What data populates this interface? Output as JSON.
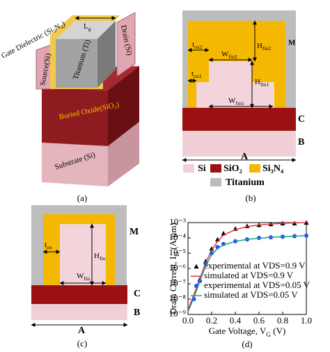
{
  "panel_a": {
    "caption": "(a)",
    "labels": [
      "Gate Dielectric (Si₃N₄)",
      {
        "text": "L",
        "sub": "g"
      },
      "Titanium (Ti)",
      "Drain (Si)",
      "Source(Si)",
      "Buried Oxide(SiO₂)",
      "Substrate (Si)"
    ]
  },
  "panel_b": {
    "caption": "(b)",
    "labels": {
      "tox2": {
        "text": "t",
        "sub": "ox2"
      },
      "wfin2": {
        "text": "W",
        "sub": "fin2"
      },
      "hfin2": {
        "text": "H",
        "sub": "fin2"
      },
      "m": "M",
      "tox1": {
        "text": "t",
        "sub": "ox1"
      },
      "hfin1": {
        "text": "H",
        "sub": "fin1"
      },
      "wfin1": {
        "text": "W",
        "sub": "fin1"
      },
      "c": "C",
      "b": "B",
      "a": "A"
    },
    "legend": [
      "Si",
      "SiO₂",
      "Si₃N₄",
      "Titanium"
    ]
  },
  "panel_c": {
    "caption": "(c)",
    "labels": {
      "tox": {
        "text": "t",
        "sub": "ox"
      },
      "hfin": {
        "text": "H",
        "sub": "fin"
      },
      "wfin": {
        "text": "W",
        "sub": "fin"
      },
      "m": "M",
      "c": "C",
      "b": "B",
      "a": "A"
    }
  },
  "chart_data": {
    "type": "line",
    "caption": "(d)",
    "x_label": {
      "text": "Gate Voltage, V",
      "sub": "G",
      "tail": " (V)"
    },
    "y_label": {
      "text": "Drain Current, I",
      "sub": "D",
      "tail": " (A/μm)"
    },
    "log_y": true,
    "grid": false,
    "xlim": [
      0,
      1
    ],
    "xticks": [
      {
        "value": 0,
        "label": "0.0"
      },
      {
        "value": 0.2,
        "label": "0.2"
      },
      {
        "value": 0.4,
        "label": "0.4"
      },
      {
        "value": 0.6,
        "label": "0.6"
      },
      {
        "value": 0.8,
        "label": "0.8"
      },
      {
        "value": 1,
        "label": "1.0"
      }
    ],
    "ylim": [
      1e-09,
      0.001
    ],
    "yticks": [
      {
        "value": 1e-09,
        "label": "10⁻⁹"
      },
      {
        "value": 1e-08,
        "label": "10⁻⁸"
      },
      {
        "value": 1e-07,
        "label": "10⁻⁷"
      },
      {
        "value": 1e-06,
        "label": "10⁻⁶"
      },
      {
        "value": 1e-05,
        "label": "10⁻⁵"
      },
      {
        "value": 0.0001,
        "label": "10⁻⁴"
      },
      {
        "value": 0.001,
        "label": "10⁻³"
      }
    ],
    "series": [
      {
        "name": "experimental at VDS=0.9 V",
        "color": "#000000",
        "style": "markers",
        "marker": "triangle",
        "x": [
          0.1,
          0.15,
          0.2,
          0.25,
          0.3,
          0.4,
          0.5,
          0.6,
          0.7,
          0.8,
          0.9,
          1.0
        ],
        "values": [
          2e-07,
          3e-06,
          2e-05,
          8e-05,
          0.0002,
          0.0004,
          0.0006,
          0.0007,
          0.0008,
          0.0009,
          0.0009,
          0.001
        ]
      },
      {
        "name": "simulated at VDS=0.9 V",
        "color": "#e8322b",
        "style": "line",
        "x": [
          0,
          0.05,
          0.1,
          0.15,
          0.2,
          0.25,
          0.3,
          0.4,
          0.5,
          0.6,
          0.7,
          0.8,
          0.9,
          1.0
        ],
        "values": [
          2e-09,
          2e-08,
          2e-07,
          2.5e-06,
          1.5e-05,
          6e-05,
          0.00015,
          0.00035,
          0.00055,
          0.0007,
          0.0008,
          0.0009,
          0.00095,
          0.001
        ]
      },
      {
        "name": "experimental at VDS=0.05 V",
        "color": "#1f4fe0",
        "style": "markers",
        "marker": "circle",
        "x": [
          0.05,
          0.1,
          0.15,
          0.2,
          0.25,
          0.3,
          0.4,
          0.5,
          0.6,
          0.7,
          0.8,
          0.9,
          1.0
        ],
        "values": [
          1e-08,
          1.5e-07,
          2e-06,
          1e-05,
          2.5e-05,
          4e-05,
          6e-05,
          8e-05,
          0.0001,
          0.00011,
          0.00012,
          0.00013,
          0.00014
        ]
      },
      {
        "name": "simulated at VDS=0.05 V",
        "color": "#1a9a9a",
        "style": "line",
        "x": [
          0,
          0.05,
          0.1,
          0.15,
          0.2,
          0.25,
          0.3,
          0.4,
          0.5,
          0.6,
          0.7,
          0.8,
          0.9,
          1.0
        ],
        "values": [
          1.5e-09,
          1.2e-08,
          1.5e-07,
          1.5e-06,
          8e-06,
          2e-05,
          3.5e-05,
          6e-05,
          8e-05,
          9.5e-05,
          0.00011,
          0.00012,
          0.00013,
          0.00014
        ]
      }
    ]
  }
}
